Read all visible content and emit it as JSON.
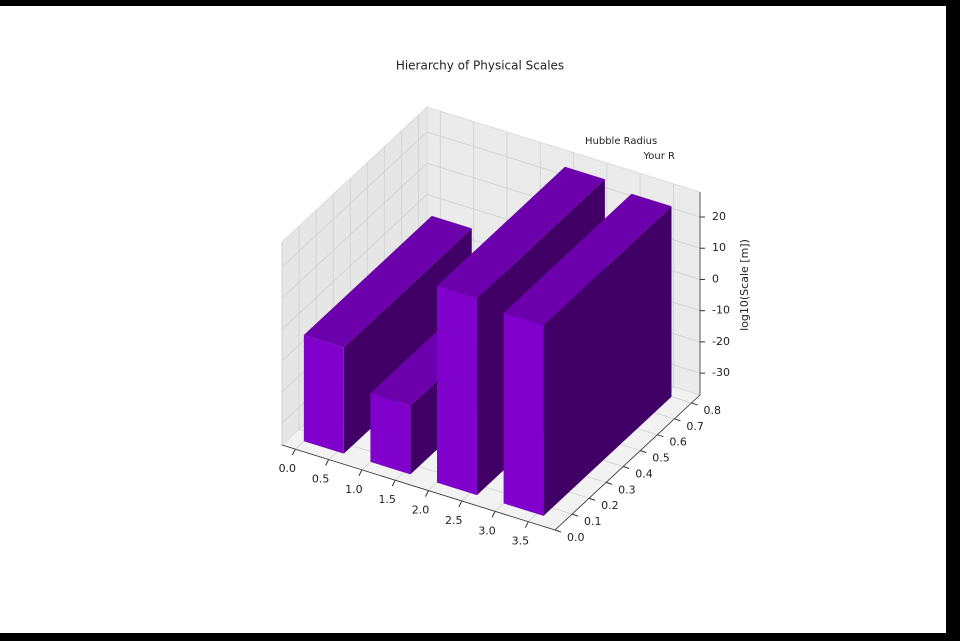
{
  "chart_data": {
    "type": "bar3d",
    "title": "Hierarchy of Physical Scales",
    "zlabel": "log10(Scale [m])",
    "x": [
      0,
      1,
      2,
      3
    ],
    "values": [
      -3,
      -15,
      26,
      24
    ],
    "color": "#8000cc",
    "annotations": [
      {
        "text": "Hubble Radius"
      },
      {
        "text": "Your R"
      }
    ],
    "xlim": [
      -0.2,
      3.9
    ],
    "xticks": [
      {
        "value": 0,
        "label": "0.0"
      },
      0.5,
      {
        "value": 1,
        "label": "1.0"
      },
      1.5,
      {
        "value": 2,
        "label": "2.0"
      },
      2.5,
      {
        "value": 3,
        "label": "3.0"
      },
      3.5
    ],
    "ylim": [
      0,
      0.85
    ],
    "yticks": [
      {
        "value": 0,
        "label": "0.0"
      },
      0.1,
      0.2,
      0.3,
      0.4,
      0.5,
      0.6,
      0.7,
      0.8
    ],
    "zlim": [
      -37,
      28
    ],
    "zticks": [
      -30,
      -20,
      -10,
      0,
      10,
      20
    ],
    "grid": true
  }
}
